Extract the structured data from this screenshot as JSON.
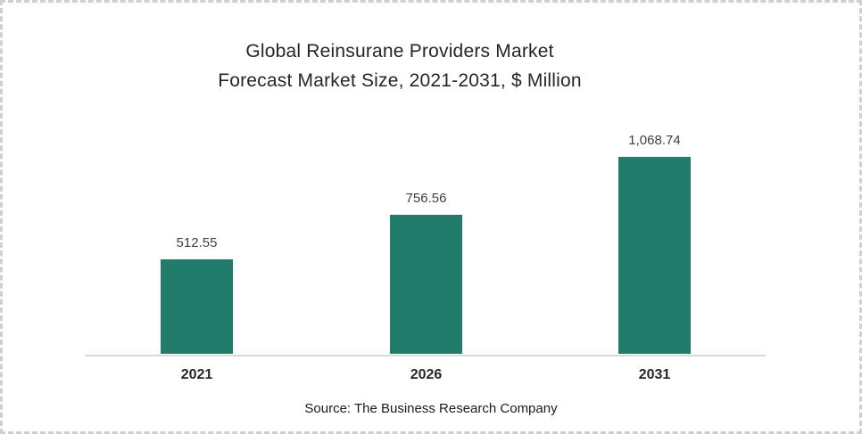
{
  "chart_data": {
    "type": "bar",
    "title": "Global Reinsurane Providers Market Forecast Market Size, 2021-2031, $ Million",
    "title_lines": [
      "Global Reinsurane Providers Market",
      "Forecast Market Size, 2021-2031, $ Million"
    ],
    "categories": [
      "2021",
      "2026",
      "2031"
    ],
    "values": [
      512.55,
      756.56,
      1068.74
    ],
    "value_labels": [
      "512.55",
      "756.56",
      "1,068.74"
    ],
    "xlabel": "",
    "ylabel": "",
    "ylim": [
      0,
      1100
    ],
    "grid": false,
    "legend": "none",
    "bar_color": "#217C6C",
    "axis_line_color": "#D9D9D9",
    "source": "Source: The Business Research Company"
  }
}
